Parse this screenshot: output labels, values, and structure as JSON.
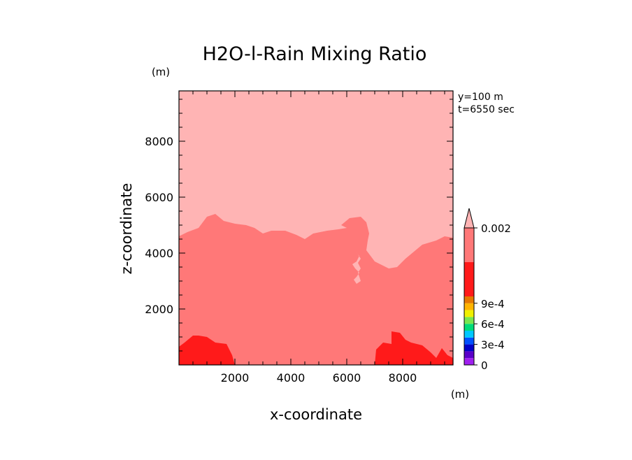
{
  "chart_data": {
    "type": "heatmap",
    "title": "H2O-l-Rain Mixing Ratio",
    "xlabel": "x-coordinate",
    "ylabel": "z-coordinate",
    "x_unit": "(m)",
    "y_unit": "(m)",
    "annotations": [
      "y=100 m",
      "t=6550 sec"
    ],
    "xlim": [
      0,
      9800
    ],
    "ylim": [
      0,
      9800
    ],
    "x_ticks": [
      2000,
      4000,
      6000,
      8000
    ],
    "y_ticks": [
      2000,
      4000,
      6000,
      8000
    ],
    "colorbar": {
      "levels": [
        0,
        0.0001,
        0.0002,
        0.0003,
        0.0004,
        0.0005,
        0.0006,
        0.0007,
        0.0008,
        0.0009,
        0.001,
        0.0015,
        0.002
      ],
      "colors": [
        "#a020f0",
        "#5a00c8",
        "#0000c8",
        "#0050ff",
        "#00c8ff",
        "#00dc78",
        "#78e650",
        "#f0f000",
        "#ffb400",
        "#e67800",
        "#ff1a1a",
        "#ff7878",
        "#ffb4b4"
      ],
      "tick_labels": [
        {
          "value": 0,
          "label": "0"
        },
        {
          "value": 0.0003,
          "label": "3e-4"
        },
        {
          "value": 0.0006,
          "label": "6e-4"
        },
        {
          "value": 0.0009,
          "label": "9e-4"
        },
        {
          "value": 0.002,
          "label": "0.002"
        }
      ]
    },
    "regions": [
      {
        "name": "above-0.002",
        "color": "#ffb4b4",
        "boundary": [
          [
            0,
            9800
          ],
          [
            9800,
            9800
          ],
          [
            9800,
            0
          ],
          [
            0,
            0
          ]
        ]
      },
      {
        "name": "0.0015-0.002",
        "color": "#ff7878",
        "boundary": [
          [
            0,
            4600
          ],
          [
            300,
            4750
          ],
          [
            700,
            4900
          ],
          [
            1000,
            5300
          ],
          [
            1300,
            5400
          ],
          [
            1600,
            5150
          ],
          [
            2000,
            5050
          ],
          [
            2400,
            5000
          ],
          [
            2700,
            4900
          ],
          [
            3000,
            4700
          ],
          [
            3300,
            4800
          ],
          [
            3800,
            4800
          ],
          [
            4200,
            4650
          ],
          [
            4500,
            4500
          ],
          [
            4800,
            4700
          ],
          [
            5300,
            4800
          ],
          [
            5700,
            4850
          ],
          [
            6000,
            4900
          ],
          [
            5800,
            5000
          ],
          [
            6100,
            5250
          ],
          [
            6500,
            5300
          ],
          [
            6700,
            5100
          ],
          [
            6800,
            4700
          ],
          [
            6750,
            4450
          ],
          [
            6700,
            4100
          ],
          [
            7000,
            3700
          ],
          [
            7500,
            3450
          ],
          [
            7800,
            3500
          ],
          [
            8100,
            3800
          ],
          [
            8400,
            4050
          ],
          [
            8700,
            4300
          ],
          [
            9200,
            4450
          ],
          [
            9500,
            4600
          ],
          [
            9800,
            4550
          ],
          [
            9800,
            0
          ],
          [
            0,
            0
          ]
        ]
      },
      {
        "name": "above-0.002-holes",
        "color": "#ffb4b4",
        "boundary": [
          [
            6200,
            3950
          ],
          [
            6300,
            4050
          ],
          [
            6450,
            3900
          ],
          [
            6350,
            3700
          ],
          [
            6200,
            3600
          ],
          [
            6300,
            3450
          ],
          [
            6450,
            3300
          ],
          [
            6350,
            3150
          ],
          [
            6250,
            3050
          ],
          [
            6350,
            2900
          ],
          [
            6500,
            3000
          ],
          [
            6400,
            3300
          ],
          [
            6500,
            3450
          ],
          [
            6400,
            3650
          ],
          [
            6500,
            3800
          ],
          [
            6400,
            3950
          ],
          [
            6300,
            4050
          ]
        ]
      },
      {
        "name": "0.001-0.0015-left",
        "color": "#ff1a1a",
        "boundary": [
          [
            0,
            650
          ],
          [
            200,
            800
          ],
          [
            500,
            1050
          ],
          [
            700,
            1050
          ],
          [
            1000,
            1000
          ],
          [
            1300,
            800
          ],
          [
            1700,
            750
          ],
          [
            1900,
            350
          ],
          [
            2000,
            0
          ],
          [
            0,
            0
          ]
        ]
      },
      {
        "name": "0.001-0.0015-right",
        "color": "#ff1a1a",
        "boundary": [
          [
            7000,
            0
          ],
          [
            7050,
            550
          ],
          [
            7300,
            800
          ],
          [
            7600,
            750
          ],
          [
            7600,
            1200
          ],
          [
            7900,
            1150
          ],
          [
            8100,
            900
          ],
          [
            8300,
            800
          ],
          [
            8700,
            700
          ],
          [
            9000,
            450
          ],
          [
            9200,
            250
          ],
          [
            9400,
            600
          ],
          [
            9600,
            350
          ],
          [
            9800,
            250
          ],
          [
            9800,
            0
          ]
        ]
      }
    ]
  }
}
